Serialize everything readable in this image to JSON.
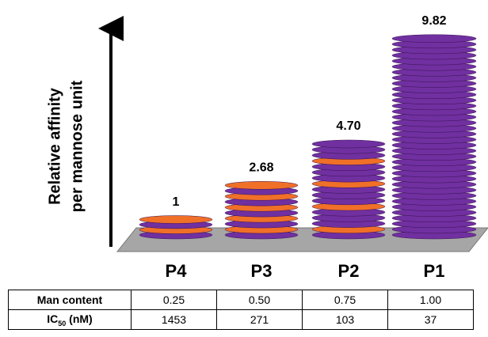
{
  "chart_data": {
    "type": "bar",
    "ylabel": [
      "Relative affinity",
      "per mannose unit"
    ],
    "categories": [
      "P4",
      "P3",
      "P2",
      "P1"
    ],
    "values": [
      1,
      2.68,
      4.7,
      9.82
    ],
    "value_labels": [
      "1",
      "2.68",
      "4.70",
      "9.82"
    ],
    "colors": [
      "#7030a0",
      "#f07028"
    ],
    "ylim": [
      0,
      10
    ]
  },
  "table": {
    "rows": [
      [
        "Man content",
        "0.25",
        "0.50",
        "0.75",
        "1.00"
      ],
      [
        [
          "IC",
          "50",
          " (nM)"
        ],
        "1453",
        "271",
        "103",
        "37"
      ]
    ]
  }
}
